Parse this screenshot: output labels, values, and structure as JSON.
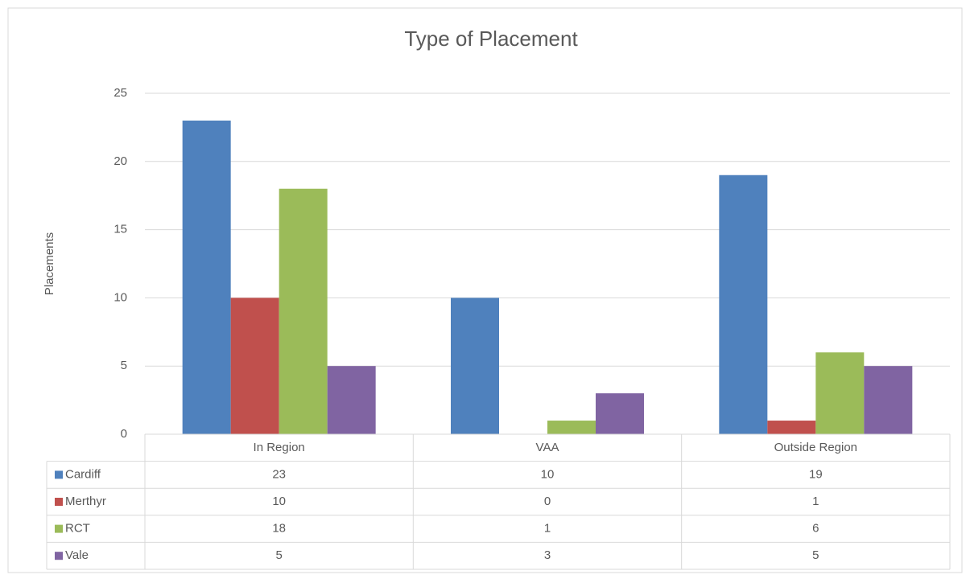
{
  "chart_data": {
    "type": "bar",
    "title": "Type of Placement",
    "y_label": "Placements",
    "categories": [
      "In Region",
      "VAA",
      "Outside Region"
    ],
    "series": [
      {
        "name": "Cardiff",
        "color": "#4f81bd",
        "values": [
          23,
          10,
          19
        ]
      },
      {
        "name": "Merthyr",
        "color": "#c0504d",
        "values": [
          10,
          0,
          1
        ]
      },
      {
        "name": "RCT",
        "color": "#9bbb59",
        "values": [
          18,
          1,
          6
        ]
      },
      {
        "name": "Vale",
        "color": "#8064a2",
        "values": [
          5,
          3,
          5
        ]
      }
    ],
    "ylim": [
      0,
      25
    ],
    "yticks": [
      0,
      5,
      10,
      15,
      20,
      25
    ],
    "grid": true,
    "data_table": true
  }
}
